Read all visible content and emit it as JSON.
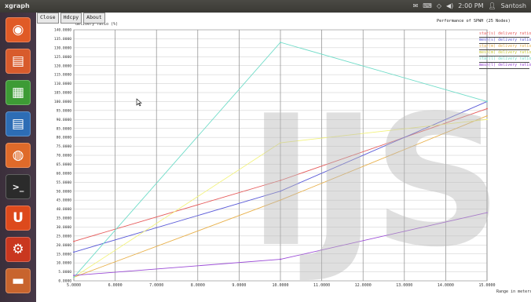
{
  "window": {
    "title": "xgraph"
  },
  "tray": {
    "time": "2:00 PM",
    "user": "Santosh",
    "icons": [
      "mail-icon",
      "keyboard-icon",
      "network-icon",
      "volume-icon"
    ]
  },
  "toolbar": {
    "close_label": "Close",
    "hardcopy_label": "Hdcpy",
    "about_label": "About"
  },
  "launcher": {
    "items": [
      {
        "name": "ubuntu-dash-icon",
        "glyph": "◉",
        "color": "#e05a26"
      },
      {
        "name": "impress-icon",
        "glyph": "▤",
        "color": "#d85b2c"
      },
      {
        "name": "calc-icon",
        "glyph": "▦",
        "color": "#3d9b35"
      },
      {
        "name": "writer-icon",
        "glyph": "▤",
        "color": "#2d6db5"
      },
      {
        "name": "software-center-icon",
        "glyph": "◍",
        "color": "#df6a2a"
      },
      {
        "name": "terminal-icon",
        "glyph": ">_",
        "color": "#2b2b2b"
      },
      {
        "name": "ubuntu-one-icon",
        "glyph": "U",
        "color": "#dd4a1c"
      },
      {
        "name": "system-settings-icon",
        "glyph": "⚙",
        "color": "#c9371f"
      },
      {
        "name": "workspace-icon",
        "glyph": "▬",
        "color": "#c8642d"
      }
    ]
  },
  "watermark": "IJS",
  "chart_data": {
    "type": "line",
    "title": "Performance of SPWH (25 Nodes)",
    "ylabel": "delivery ratio (%)",
    "xlabel": "Range in meters",
    "x_ticks": [
      "5.0000",
      "6.0000",
      "7.0000",
      "8.0000",
      "9.0000",
      "10.0000",
      "11.0000",
      "12.0000",
      "13.0000",
      "14.0000",
      "15.0000"
    ],
    "y_ticks": [
      "0.0000",
      "5.0000",
      "10.0000",
      "15.0000",
      "20.0000",
      "25.0000",
      "30.0000",
      "35.0000",
      "40.0000",
      "45.0000",
      "50.0000",
      "55.0000",
      "60.0000",
      "65.0000",
      "70.0000",
      "75.0000",
      "80.0000",
      "85.0000",
      "90.0000",
      "95.0000",
      "100.0000",
      "105.0000",
      "110.0000",
      "115.0000",
      "120.0000",
      "125.0000",
      "130.0000",
      "135.0000",
      "140.0000"
    ],
    "xlim": [
      5,
      15
    ],
    "ylim": [
      0,
      140
    ],
    "series": [
      {
        "name": "star(s) delivery ratio",
        "color": "#e65b5b",
        "points": [
          [
            5,
            22
          ],
          [
            10,
            56
          ],
          [
            15,
            96
          ]
        ]
      },
      {
        "name": "mesh(s) delivery ratio",
        "color": "#5a5ad8",
        "points": [
          [
            5,
            16
          ],
          [
            10,
            50
          ],
          [
            15,
            100
          ]
        ]
      },
      {
        "name": "star(m) delivery ratio",
        "color": "#e8b04a",
        "points": [
          [
            5,
            2
          ],
          [
            10,
            45
          ],
          [
            15,
            92
          ]
        ]
      },
      {
        "name": "mesh(m) delivery ratio",
        "color": "#f2f27a",
        "points": [
          [
            5,
            2
          ],
          [
            10,
            77
          ],
          [
            15,
            90
          ]
        ]
      },
      {
        "name": "star(l) delivery ratio",
        "color": "#6fdcc8",
        "points": [
          [
            5,
            2
          ],
          [
            10,
            133
          ],
          [
            15,
            100
          ]
        ]
      },
      {
        "name": "mesh(l) delivery ratio",
        "color": "#9a4ad6",
        "points": [
          [
            5,
            3
          ],
          [
            10,
            12
          ],
          [
            15,
            38
          ]
        ]
      }
    ]
  }
}
